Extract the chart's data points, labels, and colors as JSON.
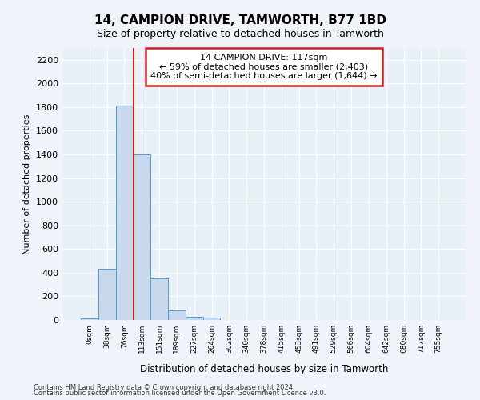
{
  "title1": "14, CAMPION DRIVE, TAMWORTH, B77 1BD",
  "title2": "Size of property relative to detached houses in Tamworth",
  "xlabel": "Distribution of detached houses by size in Tamworth",
  "ylabel": "Number of detached properties",
  "footnote1": "Contains HM Land Registry data © Crown copyright and database right 2024.",
  "footnote2": "Contains public sector information licensed under the Open Government Licence v3.0.",
  "bar_labels": [
    "0sqm",
    "38sqm",
    "76sqm",
    "113sqm",
    "151sqm",
    "189sqm",
    "227sqm",
    "264sqm",
    "302sqm",
    "340sqm",
    "378sqm",
    "415sqm",
    "453sqm",
    "491sqm",
    "529sqm",
    "566sqm",
    "604sqm",
    "642sqm",
    "680sqm",
    "717sqm",
    "755sqm"
  ],
  "bar_values": [
    15,
    430,
    1810,
    1400,
    350,
    80,
    30,
    20,
    0,
    0,
    0,
    0,
    0,
    0,
    0,
    0,
    0,
    0,
    0,
    0,
    0
  ],
  "bar_color": "#c8d8ed",
  "bar_edge_color": "#5599cc",
  "vline_x": 2.55,
  "vline_color": "#cc2222",
  "ylim": [
    0,
    2300
  ],
  "yticks": [
    0,
    200,
    400,
    600,
    800,
    1000,
    1200,
    1400,
    1600,
    1800,
    2000,
    2200
  ],
  "annotation_text": "14 CAMPION DRIVE: 117sqm\n← 59% of detached houses are smaller (2,403)\n40% of semi-detached houses are larger (1,644) →",
  "annotation_box_facecolor": "#ffffff",
  "annotation_box_edgecolor": "#cc2222",
  "bg_color": "#f0f4fa",
  "plot_bg_color": "#e8f0f8",
  "grid_color": "#ffffff"
}
